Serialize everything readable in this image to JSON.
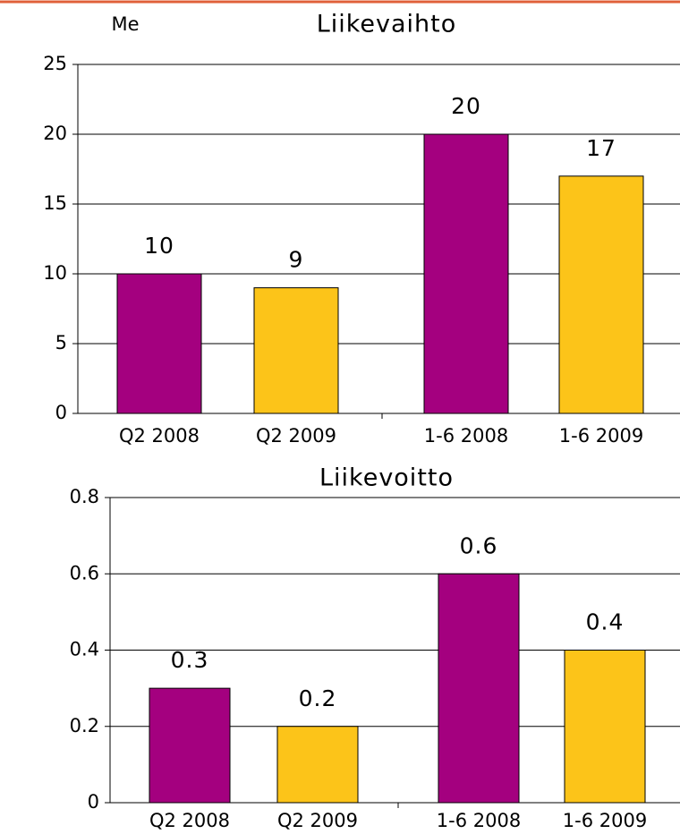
{
  "chart_data": [
    {
      "type": "bar",
      "title": "Liikevaihto",
      "unit_label": "Me",
      "categories": [
        "Q2 2008",
        "Q2 2009",
        "1-6 2008",
        "1-6 2009"
      ],
      "values": [
        10,
        9,
        20,
        17
      ],
      "colors": [
        "#a4007f",
        "#fcc419",
        "#a4007f",
        "#fcc419"
      ],
      "ylim": [
        0,
        25
      ],
      "yticks": [
        0,
        5,
        10,
        15,
        20,
        25
      ],
      "grid": true
    },
    {
      "type": "bar",
      "title": "Liikevoitto",
      "categories": [
        "Q2 2008",
        "Q2 2009",
        "1-6 2008",
        "1-6 2009"
      ],
      "values": [
        0.3,
        0.2,
        0.6,
        0.4
      ],
      "colors": [
        "#a4007f",
        "#fcc419",
        "#a4007f",
        "#fcc419"
      ],
      "ylim": [
        0,
        0.8
      ],
      "yticks": [
        0,
        0.2,
        0.4,
        0.6,
        0.8
      ],
      "grid": true
    }
  ]
}
